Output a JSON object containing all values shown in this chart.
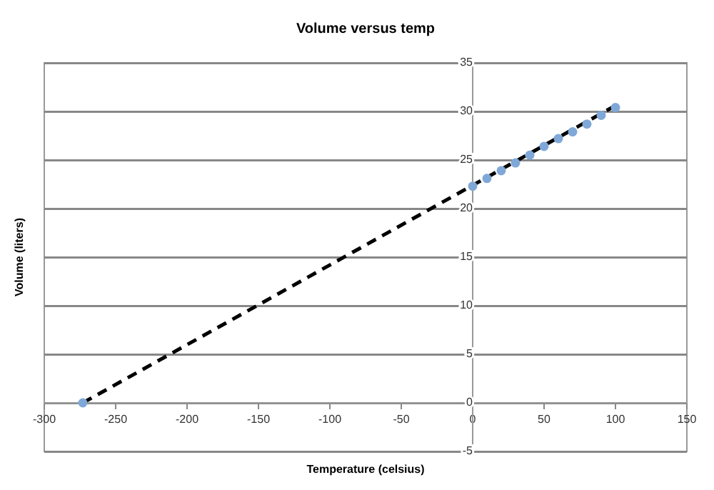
{
  "chart_data": {
    "type": "scatter",
    "title": "Volume versus temp",
    "xlabel": "Temperature (celsius)",
    "ylabel": "Volume (liters)",
    "xlim": [
      -300,
      150
    ],
    "xticks": [
      -300,
      -250,
      -200,
      -150,
      -100,
      -50,
      0,
      50,
      100,
      150
    ],
    "ylim": [
      -5,
      35
    ],
    "yticks": [
      -5,
      0,
      5,
      10,
      15,
      20,
      25,
      30,
      35
    ],
    "grid": "y",
    "legend": false,
    "marker": "circle",
    "series": [
      {
        "type": "scatter",
        "color": "#7fa8d8",
        "x": [
          -273,
          0,
          10,
          20,
          30,
          40,
          50,
          60,
          70,
          80,
          90,
          100
        ],
        "values": [
          0,
          22.3,
          23.1,
          23.9,
          24.7,
          25.5,
          26.4,
          27.2,
          27.9,
          28.7,
          29.6,
          30.4
        ]
      },
      {
        "type": "line",
        "color": "#000000",
        "line_style": "dashed",
        "marker": "none",
        "x": [
          -273,
          100
        ],
        "values": [
          0,
          30.6
        ]
      }
    ]
  }
}
